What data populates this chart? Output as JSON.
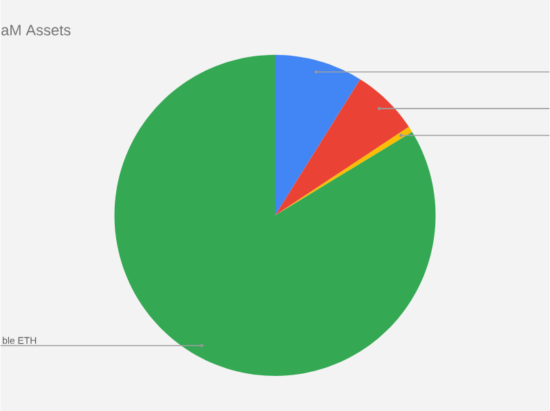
{
  "chart_data": {
    "type": "pie",
    "title": "aM Assets",
    "categories": [
      null,
      null,
      null,
      "ble ETH"
    ],
    "values": [
      8.9,
      6.8,
      0.6,
      83.7
    ],
    "colors": [
      "#4285f4",
      "#ea4335",
      "#fbbc04",
      "#34a853"
    ]
  }
}
